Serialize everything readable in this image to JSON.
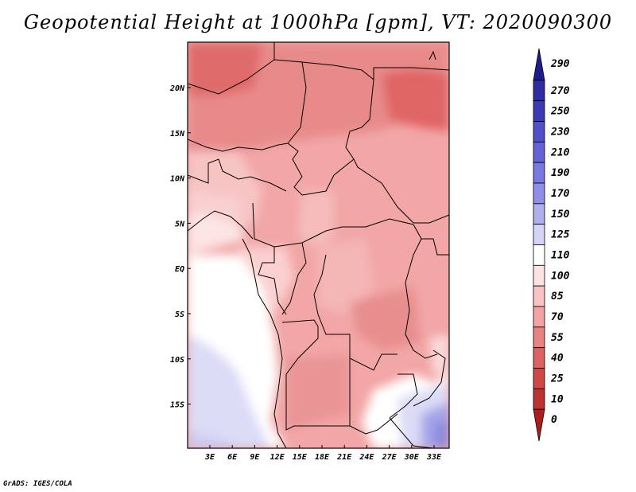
{
  "title": "Geopotential Height at 1000hPa [gpm], VT: 2020090300",
  "credit": "GrADS: IGES/COLA",
  "chart_data": {
    "type": "heatmap",
    "variable": "Geopotential Height at 1000hPa",
    "units": "gpm",
    "valid_time": "2020090300",
    "map_region": "Central Africa",
    "lon_ticks": [
      "3E",
      "6E",
      "9E",
      "12E",
      "15E",
      "18E",
      "21E",
      "24E",
      "27E",
      "30E",
      "33E"
    ],
    "lat_ticks": [
      "20N",
      "15N",
      "10N",
      "5N",
      "EQ",
      "5S",
      "10S",
      "15S"
    ],
    "colorbar": {
      "levels": [
        "290",
        "270",
        "250",
        "230",
        "210",
        "190",
        "170",
        "150",
        "125",
        "110",
        "100",
        "85",
        "70",
        "55",
        "40",
        "25",
        "10",
        "0"
      ],
      "colors": [
        "#1c1c8c",
        "#2e2ea0",
        "#3b3bb8",
        "#5050c8",
        "#6363d7",
        "#7878e2",
        "#8f8fe9",
        "#afafee",
        "#d4d4f6",
        "#ffffff",
        "#fde2e2",
        "#f9c3c3",
        "#f2a2a2",
        "#e98383",
        "#df6262",
        "#d04747",
        "#bf3232",
        "#aa1e1e"
      ]
    },
    "legend_placement": "right",
    "grid": false
  }
}
